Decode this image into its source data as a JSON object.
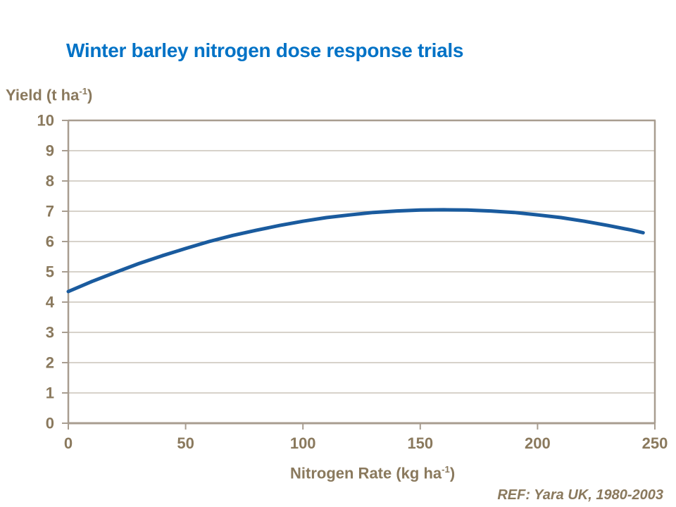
{
  "page": {
    "background": "#FFFFFF"
  },
  "colors": {
    "title_blue": "#0072C6",
    "curve_blue": "#1A5B9E",
    "label_tan": "#8A795D",
    "axis_gray": "#A89D90",
    "grid_gray": "#BFB6AA"
  },
  "labels": {
    "y_axis": {
      "prefix": "Yield (t ha",
      "sup": "-1",
      "suffix": ")"
    },
    "x_axis": {
      "prefix": "Nitrogen Rate (kg ha",
      "sup": "-1",
      "suffix": ")"
    }
  },
  "footer": {
    "ref": "REF: Yara UK, 1980-2003"
  },
  "chart_data": {
    "type": "line",
    "title": "Winter barley nitrogen dose response trials",
    "xlabel": "Nitrogen Rate (kg ha⁻¹)",
    "ylabel": "Yield (t ha⁻¹)",
    "xlim": [
      0,
      250
    ],
    "ylim": [
      0,
      10
    ],
    "xticks": [
      0,
      50,
      100,
      150,
      200,
      250
    ],
    "yticks": [
      0,
      1,
      2,
      3,
      4,
      5,
      6,
      7,
      8,
      9,
      10
    ],
    "grid": "horizontal",
    "legend": "none",
    "series": [
      {
        "name": "Yield",
        "x": [
          0,
          10,
          20,
          30,
          40,
          50,
          60,
          70,
          80,
          90,
          100,
          110,
          120,
          130,
          140,
          150,
          160,
          170,
          180,
          190,
          200,
          210,
          220,
          230,
          240,
          245
        ],
        "y": [
          4.35,
          4.68,
          4.98,
          5.27,
          5.53,
          5.77,
          6.0,
          6.2,
          6.37,
          6.53,
          6.67,
          6.79,
          6.88,
          6.96,
          7.01,
          7.04,
          7.05,
          7.04,
          7.01,
          6.96,
          6.88,
          6.79,
          6.67,
          6.53,
          6.38,
          6.29
        ]
      }
    ],
    "annotations": [
      "REF: Yara UK, 1980-2003"
    ]
  }
}
